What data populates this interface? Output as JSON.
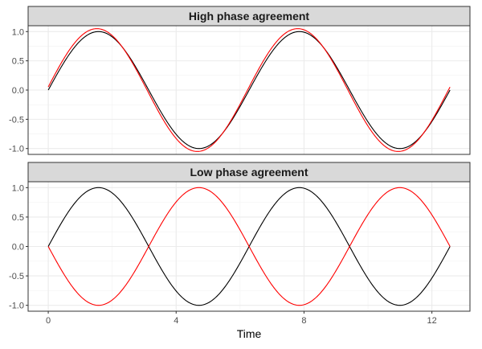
{
  "chart_data": {
    "type": "line",
    "xlabel": "Time",
    "x_ticks": [
      0,
      4,
      8,
      12
    ],
    "x_tick_labels": [
      "0",
      "4",
      "8",
      "12"
    ],
    "xlim": [
      -0.63,
      13.19
    ],
    "ylim": [
      -1.1,
      1.1
    ],
    "y_ticks": [
      -1.0,
      -0.5,
      0.0,
      0.5,
      1.0
    ],
    "y_tick_labels": [
      "-1.0",
      "-0.5",
      "0.0",
      "0.5",
      "1.0"
    ],
    "grid": true,
    "legend": "none",
    "series_colors": [
      "#000000",
      "#ff0000"
    ],
    "panels": [
      {
        "title": "High phase agreement",
        "series": [
          {
            "function": "sin(t)",
            "x_range": [
              0,
              12.566
            ],
            "color": "#000000"
          },
          {
            "function": "1.05*sin(t+0.05)",
            "x_range": [
              0,
              12.566
            ],
            "color": "#ff0000"
          }
        ]
      },
      {
        "title": "Low phase agreement",
        "series": [
          {
            "function": "sin(t)",
            "x_range": [
              0,
              12.566
            ],
            "color": "#000000"
          },
          {
            "function": "-sin(t)",
            "x_range": [
              0,
              12.566
            ],
            "color": "#ff0000"
          }
        ]
      }
    ]
  }
}
